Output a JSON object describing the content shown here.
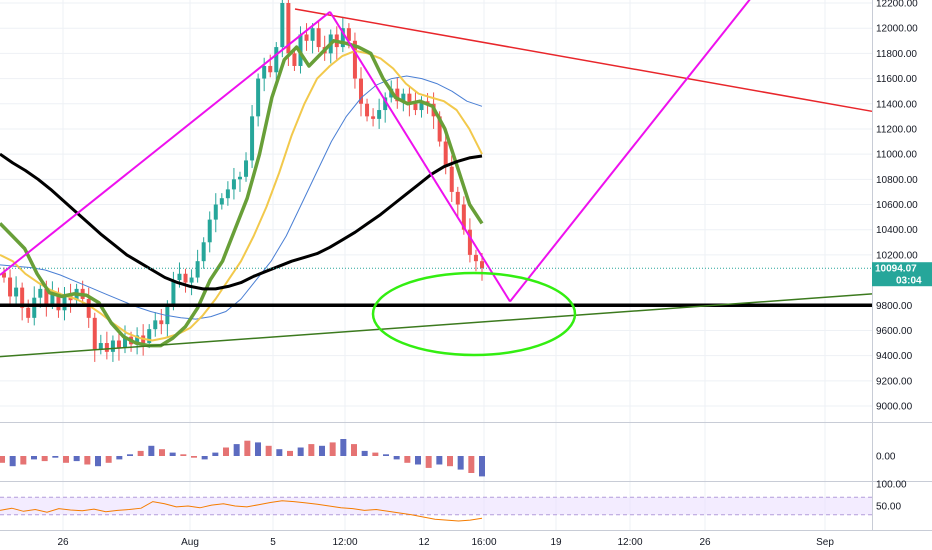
{
  "colors": {
    "up": "#26a69a",
    "down": "#ef5350",
    "grid": "#eef1f5",
    "price_tag": "#26a69a",
    "black_ma": "#000000",
    "green_ma": "#689f38",
    "orange_ma": "#f2c94c",
    "blue_ma": "#4a7fd4",
    "trend_red": "#e8262b",
    "trend_magenta": "#ee11ee",
    "trend_green": "#3c7a1e",
    "ellipse": "#33ee11",
    "support_line": "#000000",
    "rsi": "#f57c00",
    "rsi_band": "#e9dcff"
  },
  "chart_data": [
    {
      "type": "candlestick",
      "name": "price",
      "ylim": [
        8800,
        12250
      ],
      "y_ticks": [
        "12200.00",
        "12000.00",
        "11800.00",
        "11600.00",
        "11400.00",
        "11200.00",
        "11000.00",
        "10800.00",
        "10600.00",
        "10400.00",
        "10200.00",
        "9800.00",
        "9600.00",
        "9400.00",
        "9200.00",
        "9000.00"
      ],
      "x_ticks": [
        "26",
        "Aug",
        "5",
        "12:00",
        "12",
        "16:00",
        "19",
        "12:00",
        "26",
        "Sep"
      ],
      "last_price_label": "10094.07",
      "countdown_label": "03:04",
      "support_level": 9800,
      "closes": [
        10020,
        9870,
        9940,
        9780,
        9700,
        9860,
        9930,
        9810,
        9900,
        9760,
        9880,
        9840,
        9930,
        9850,
        9700,
        9450,
        9500,
        9430,
        9520,
        9460,
        9550,
        9490,
        9560,
        9500,
        9610,
        9680,
        9650,
        9800,
        10000,
        10050,
        9980,
        10020,
        10150,
        10300,
        10480,
        10600,
        10650,
        10720,
        10800,
        10820,
        10950,
        11300,
        11600,
        11700,
        11650,
        11850,
        12200,
        11800,
        11700,
        11950,
        11900,
        12000,
        11850,
        11800,
        11950,
        11850,
        12000,
        11900,
        11600,
        11400,
        11300,
        11280,
        11350,
        11450,
        11520,
        11420,
        11480,
        11400,
        11350,
        11420,
        11400,
        11300,
        11100,
        10900,
        10700,
        10600,
        10400,
        10200,
        10150,
        10094.07
      ],
      "overlays": {
        "black_ma": [
          11000,
          10930,
          10870,
          10800,
          10720,
          10630,
          10540,
          10450,
          10360,
          10280,
          10200,
          10140,
          10080,
          10020,
          9980,
          9950,
          9930,
          9930,
          9950,
          9980,
          10030,
          10070,
          10110,
          10150,
          10180,
          10210,
          10260,
          10320,
          10380,
          10450,
          10520,
          10600,
          10680,
          10760,
          10840,
          10900,
          10940,
          10970,
          10985
        ],
        "green_ma": [
          10450,
          10350,
          10250,
          10050,
          9900,
          9870,
          9890,
          9880,
          9820,
          9660,
          9550,
          9500,
          9480,
          9480,
          9540,
          9630,
          9780,
          10000,
          10150,
          10400,
          10650,
          11000,
          11450,
          11750,
          11850,
          11700,
          11800,
          11900,
          11880,
          11850,
          11800,
          11600,
          11450,
          11400,
          11420,
          11380,
          11200,
          10900,
          10600,
          10450
        ],
        "orange_ma": [
          10200,
          10150,
          10050,
          9980,
          9920,
          9880,
          9850,
          9800,
          9730,
          9650,
          9580,
          9540,
          9520,
          9540,
          9570,
          9620,
          9720,
          9850,
          10000,
          10150,
          10350,
          10580,
          10850,
          11150,
          11400,
          11600,
          11700,
          11780,
          11820,
          11800,
          11760,
          11680,
          11560,
          11480,
          11450,
          11420,
          11350,
          11200,
          11000
        ],
        "blue_ma": [
          10120,
          10110,
          10100,
          10080,
          10040,
          9990,
          9940,
          9890,
          9840,
          9790,
          9750,
          9720,
          9700,
          9690,
          9710,
          9750,
          9850,
          10000,
          10150,
          10350,
          10600,
          10850,
          11100,
          11300,
          11450,
          11550,
          11600,
          11620,
          11600,
          11560,
          11500,
          11420,
          11380
        ]
      }
    },
    {
      "type": "histogram",
      "name": "momentum",
      "y_ticks": [
        "0.00"
      ],
      "values": [
        -0.4,
        -0.6,
        -0.5,
        -0.2,
        -0.3,
        -0.1,
        -0.4,
        -0.3,
        -0.5,
        -0.6,
        -0.4,
        -0.2,
        0.1,
        0.3,
        0.6,
        0.4,
        0.2,
        0.1,
        -0.1,
        -0.2,
        0.2,
        0.5,
        0.7,
        0.9,
        0.8,
        0.6,
        0.4,
        0.3,
        0.5,
        0.7,
        0.6,
        0.8,
        1.0,
        0.7,
        0.3,
        0.2,
        0.1,
        -0.2,
        -0.4,
        -0.5,
        -0.7,
        -0.5,
        -0.6,
        -0.8,
        -1.0,
        -1.2
      ]
    },
    {
      "type": "line",
      "name": "rsi",
      "y_ticks": [
        "100.00",
        "50.00"
      ],
      "ylim": [
        0,
        100
      ],
      "band": [
        30,
        70
      ],
      "values": [
        40,
        45,
        38,
        42,
        36,
        44,
        41,
        39,
        43,
        37,
        40,
        42,
        45,
        60,
        55,
        48,
        50,
        46,
        52,
        55,
        50,
        48,
        53,
        58,
        62,
        60,
        57,
        54,
        50,
        46,
        44,
        40,
        42,
        38,
        34,
        30,
        25,
        20,
        18,
        16,
        18,
        22
      ]
    }
  ]
}
